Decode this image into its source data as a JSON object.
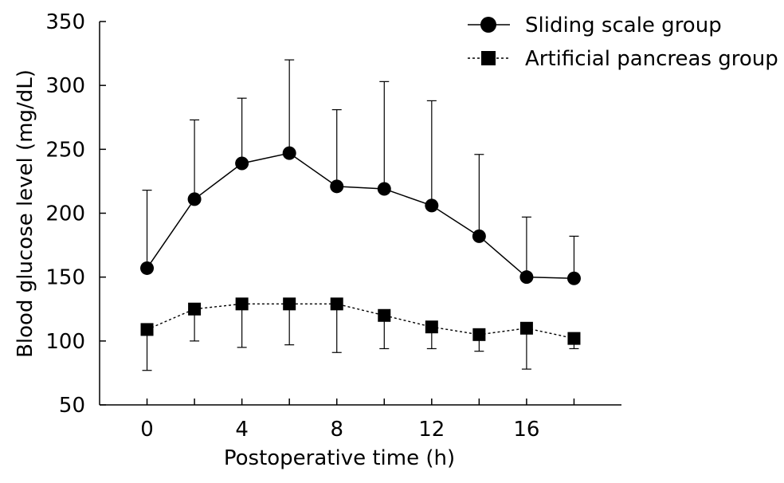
{
  "chart_data": {
    "type": "line",
    "xlabel": "Postoperative time (h)",
    "ylabel": "Blood glucose level (mg/dL)",
    "xlim": [
      -2,
      20
    ],
    "ylim": [
      50,
      350
    ],
    "xticks": [
      0,
      4,
      8,
      12,
      16
    ],
    "xticks_minor": [
      2,
      6,
      10,
      14,
      18
    ],
    "yticks": [
      50,
      100,
      150,
      200,
      250,
      300,
      350
    ],
    "x": [
      0,
      2,
      4,
      6,
      8,
      10,
      12,
      14,
      16,
      18
    ],
    "grid": false,
    "legend": "top-right",
    "series": [
      {
        "name": "Sliding scale group",
        "marker": "circle",
        "line": "solid",
        "values": [
          157,
          211,
          239,
          247,
          221,
          219,
          206,
          182,
          150,
          149
        ],
        "error_upper": [
          218,
          273,
          290,
          320,
          281,
          303,
          288,
          246,
          197,
          182
        ],
        "error_lower": null
      },
      {
        "name": "Artificial pancreas group",
        "marker": "square",
        "line": "dotted",
        "values": [
          109,
          125,
          129,
          129,
          129,
          120,
          111,
          105,
          110,
          102
        ],
        "error_upper": null,
        "error_lower": [
          77,
          100,
          95,
          97,
          91,
          94,
          94,
          92,
          78,
          94
        ]
      }
    ],
    "colors": {
      "line": "#000000",
      "marker": "#000000"
    }
  }
}
